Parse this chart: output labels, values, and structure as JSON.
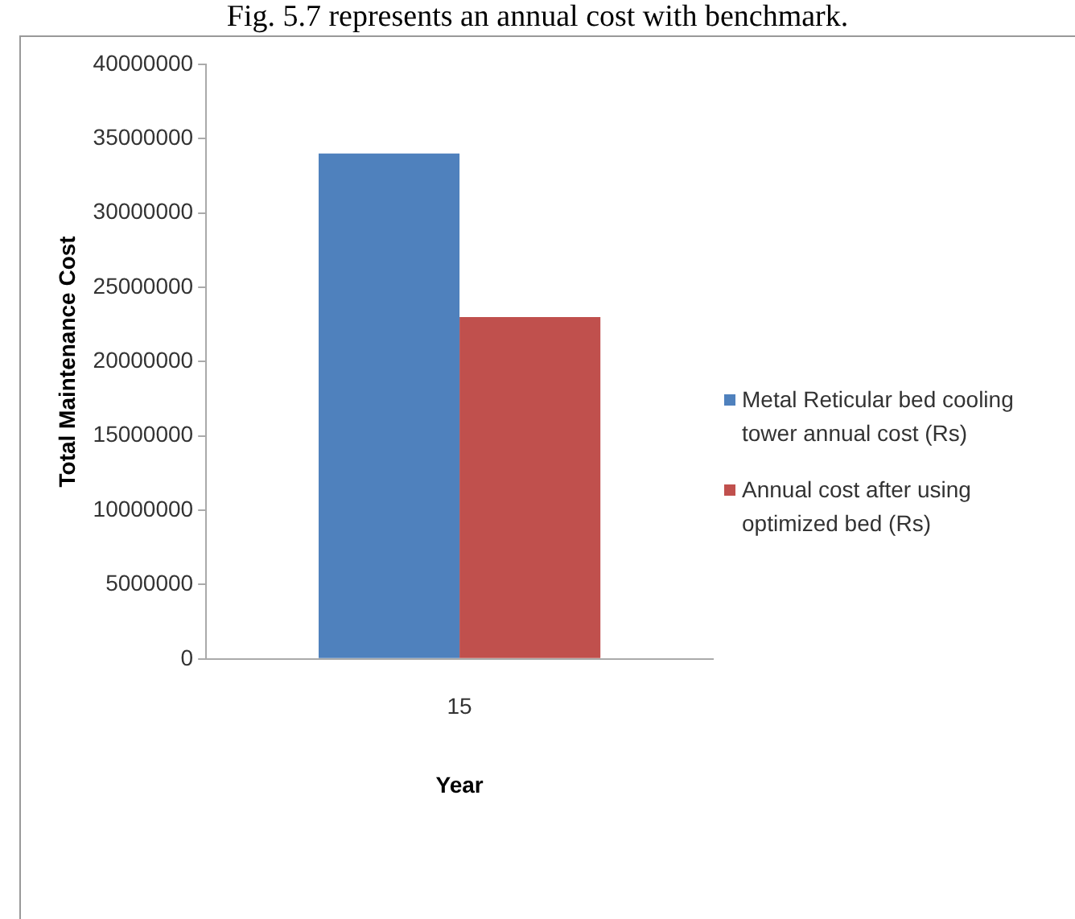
{
  "chart_data": {
    "type": "bar",
    "annotations": [
      "Fig. 5.7 represents an annual cost with benchmark."
    ],
    "categories": [
      "15"
    ],
    "xlabel": "Year",
    "ylabel": "Total Maintenance Cost",
    "series": [
      {
        "name": "Metal Reticular bed cooling tower annual cost (Rs)",
        "color": "#4f81bd",
        "values": [
          34000000
        ]
      },
      {
        "name": "Annual cost after using optimized bed (Rs)",
        "color": "#c0504d",
        "values": [
          23000000
        ]
      }
    ],
    "ylim": [
      0,
      40000000
    ],
    "yticks": [
      0,
      5000000,
      10000000,
      15000000,
      20000000,
      25000000,
      30000000,
      35000000,
      40000000
    ],
    "grid": false,
    "legend": "right"
  }
}
